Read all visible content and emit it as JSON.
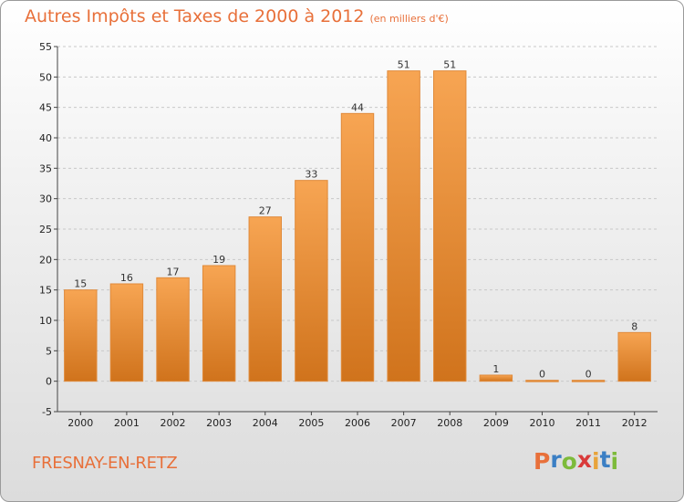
{
  "header": {
    "title": "Autres Impôts et Taxes de 2000 à 2012",
    "subtitle": "(en milliers d'€)"
  },
  "footer": {
    "commune": "FRESNAY-EN-RETZ",
    "logo": {
      "letters": [
        "P",
        "r",
        "o",
        "x",
        "i",
        "t",
        "i"
      ],
      "colors": [
        "#e8703a",
        "#3b7fc4",
        "#7dbb3a",
        "#d93a3a",
        "#e8a33a",
        "#3b7fc4",
        "#7dbb3a"
      ]
    }
  },
  "colors": {
    "bar_fill_light": "#f7a553",
    "bar_fill_dark": "#d0731c",
    "title": "#e8703a"
  },
  "chart_data": {
    "type": "bar",
    "title": "Autres Impôts et Taxes de 2000 à 2012",
    "subtitle": "(en milliers d'€)",
    "xlabel": "",
    "ylabel": "",
    "categories": [
      "2000",
      "2001",
      "2002",
      "2003",
      "2004",
      "2005",
      "2006",
      "2007",
      "2008",
      "2009",
      "2010",
      "2011",
      "2012"
    ],
    "values": [
      15,
      16,
      17,
      19,
      27,
      33,
      44,
      51,
      51,
      1,
      0,
      0,
      8
    ],
    "ylim": [
      -5,
      55
    ],
    "yticks": [
      -5,
      0,
      5,
      10,
      15,
      20,
      25,
      30,
      35,
      40,
      45,
      50,
      55
    ],
    "grid": true,
    "legend": "none"
  }
}
